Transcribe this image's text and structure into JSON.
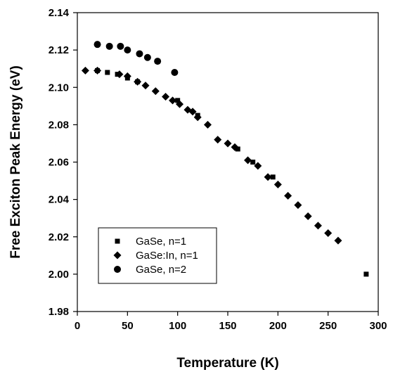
{
  "chart_data": {
    "type": "scatter",
    "xlabel": "Temperature (K)",
    "ylabel": "Free Exciton Peak Energy (eV)",
    "xlim": [
      0,
      300
    ],
    "ylim": [
      1.98,
      2.14
    ],
    "xticks": [
      0,
      50,
      100,
      150,
      200,
      250,
      300
    ],
    "yticks": [
      1.98,
      2.0,
      2.02,
      2.04,
      2.06,
      2.08,
      2.1,
      2.12,
      2.14
    ],
    "xtick_labels": [
      "0",
      "50",
      "100",
      "150",
      "200",
      "250",
      "300"
    ],
    "ytick_labels": [
      "1.98",
      "2.00",
      "2.02",
      "2.04",
      "2.06",
      "2.08",
      "2.10",
      "2.12",
      "2.14"
    ],
    "grid": false,
    "legend_position": "bottom-left",
    "series": [
      {
        "name": "GaSe, n=1",
        "marker": "square",
        "color": "#000000",
        "points": [
          [
            20,
            2.109
          ],
          [
            30,
            2.108
          ],
          [
            40,
            2.107
          ],
          [
            50,
            2.105
          ],
          [
            60,
            2.103
          ],
          [
            100,
            2.093
          ],
          [
            120,
            2.085
          ],
          [
            160,
            2.067
          ],
          [
            175,
            2.06
          ],
          [
            195,
            2.052
          ],
          [
            288,
            2.0
          ]
        ]
      },
      {
        "name": "GaSe:In, n=1",
        "marker": "diamond",
        "color": "#000000",
        "points": [
          [
            8,
            2.109
          ],
          [
            20,
            2.109
          ],
          [
            42,
            2.107
          ],
          [
            50,
            2.106
          ],
          [
            60,
            2.103
          ],
          [
            68,
            2.101
          ],
          [
            78,
            2.098
          ],
          [
            88,
            2.095
          ],
          [
            95,
            2.093
          ],
          [
            102,
            2.091
          ],
          [
            110,
            2.088
          ],
          [
            115,
            2.087
          ],
          [
            120,
            2.084
          ],
          [
            130,
            2.08
          ],
          [
            140,
            2.072
          ],
          [
            150,
            2.07
          ],
          [
            157,
            2.068
          ],
          [
            170,
            2.061
          ],
          [
            180,
            2.058
          ],
          [
            190,
            2.052
          ],
          [
            200,
            2.048
          ],
          [
            210,
            2.042
          ],
          [
            220,
            2.037
          ],
          [
            230,
            2.031
          ],
          [
            240,
            2.026
          ],
          [
            250,
            2.022
          ],
          [
            260,
            2.018
          ]
        ]
      },
      {
        "name": "GaSe, n=2",
        "marker": "circle",
        "color": "#000000",
        "points": [
          [
            20,
            2.123
          ],
          [
            32,
            2.122
          ],
          [
            43,
            2.122
          ],
          [
            50,
            2.12
          ],
          [
            62,
            2.118
          ],
          [
            70,
            2.116
          ],
          [
            80,
            2.114
          ],
          [
            97,
            2.108
          ]
        ]
      }
    ]
  }
}
